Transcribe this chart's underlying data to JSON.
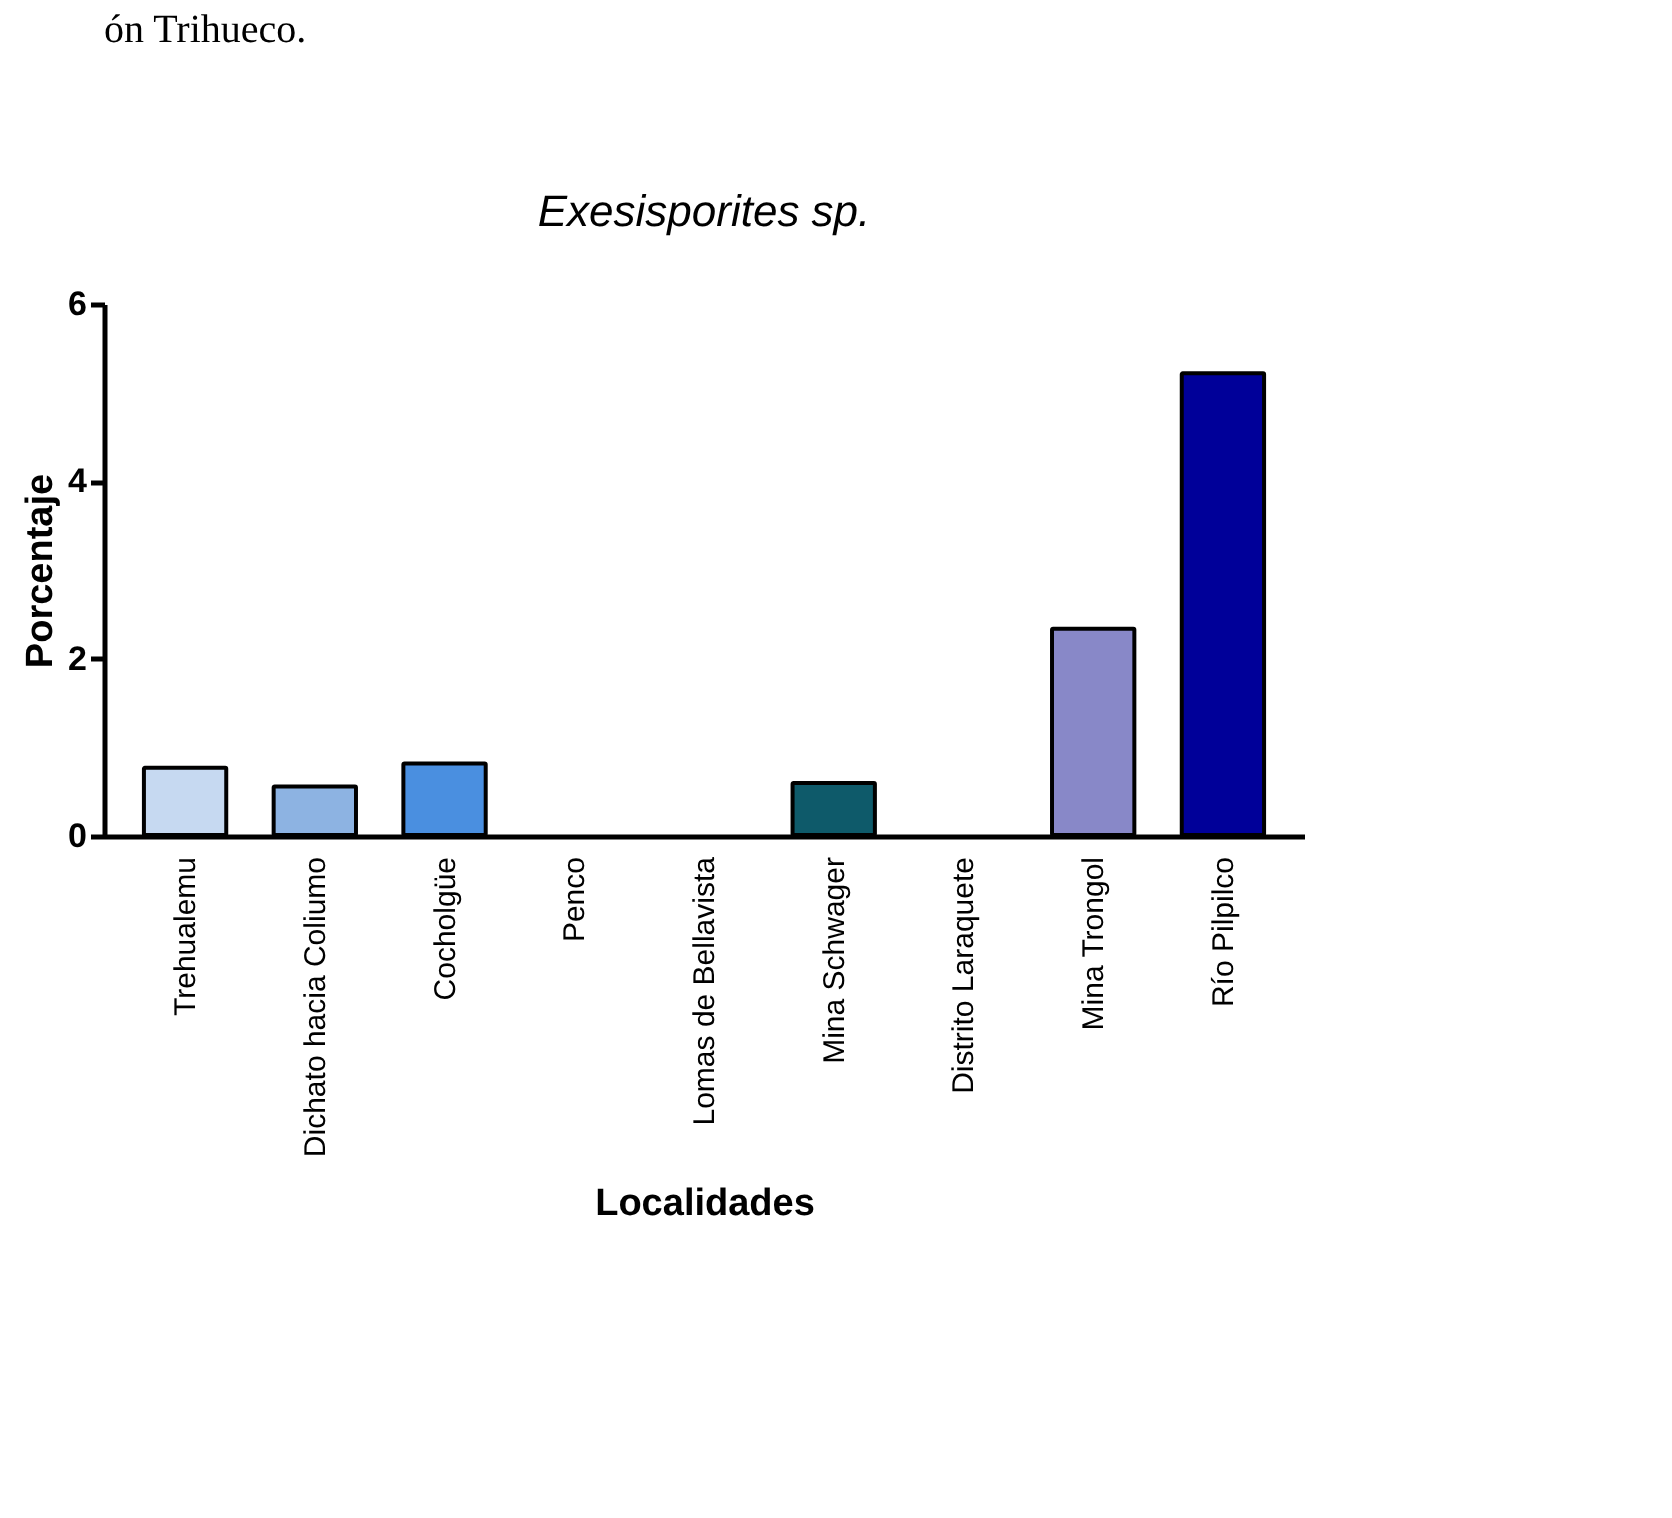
{
  "chart_data": {
    "type": "bar",
    "title": "Exesisporites sp.",
    "xlabel": "Localidades",
    "ylabel": "Porcentaje",
    "categories": [
      "Trehualemu",
      "Dichato hacia Coliumo",
      "Cocholgüe",
      "Penco",
      "Lomas de Bellavista",
      "Mina Schwager",
      "Distrito Laraquete",
      "Mina Trongol",
      "Río Pilpilco"
    ],
    "values": [
      0.78,
      0.57,
      0.83,
      0,
      0,
      0.61,
      0,
      2.35,
      5.23
    ],
    "colors": [
      "#c6d9f1",
      "#8db3e2",
      "#4a8fe0",
      null,
      null,
      "#0e5a6a",
      null,
      "#8888c8",
      "#000099"
    ],
    "ylim": [
      0,
      6
    ],
    "yticks": [
      0,
      2,
      4,
      6
    ],
    "grid": false,
    "annotations": [
      "ón Trihueco."
    ]
  }
}
